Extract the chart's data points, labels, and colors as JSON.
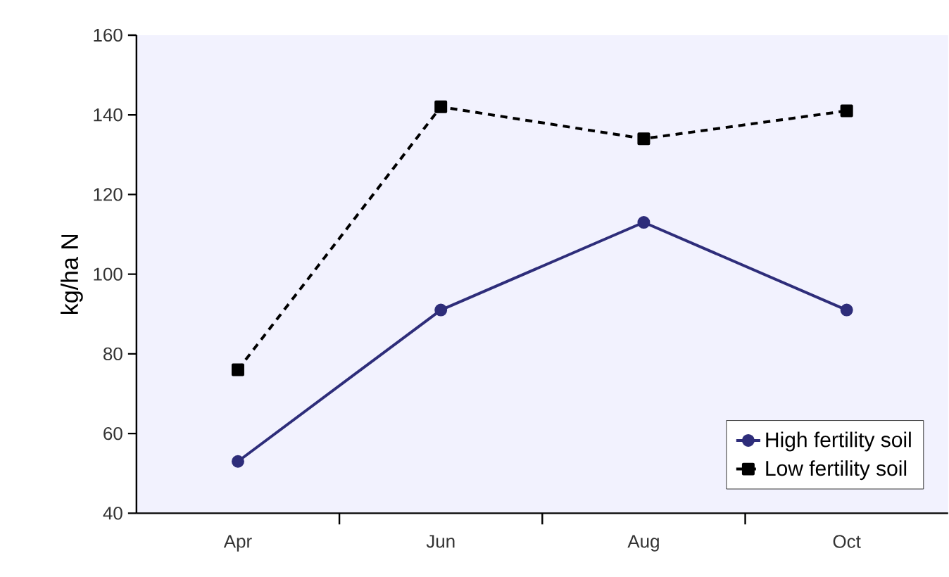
{
  "chart_data": {
    "type": "line",
    "ylabel": "kg/ha N",
    "categories": [
      "Apr",
      "Jun",
      "Aug",
      "Oct"
    ],
    "series": [
      {
        "name": "High fertility soil",
        "color": "#2e2d7a",
        "values": [
          53,
          91,
          113,
          91
        ],
        "marker": "circle",
        "line_style": "solid"
      },
      {
        "name": "Low fertility soil",
        "color": "#000000",
        "values": [
          76,
          142,
          134,
          141
        ],
        "marker": "square",
        "line_style": "dashed"
      }
    ],
    "ylim": [
      40,
      160
    ],
    "yticks": [
      40,
      60,
      80,
      100,
      120,
      140,
      160
    ],
    "grid": false,
    "legend": "bottom right"
  }
}
